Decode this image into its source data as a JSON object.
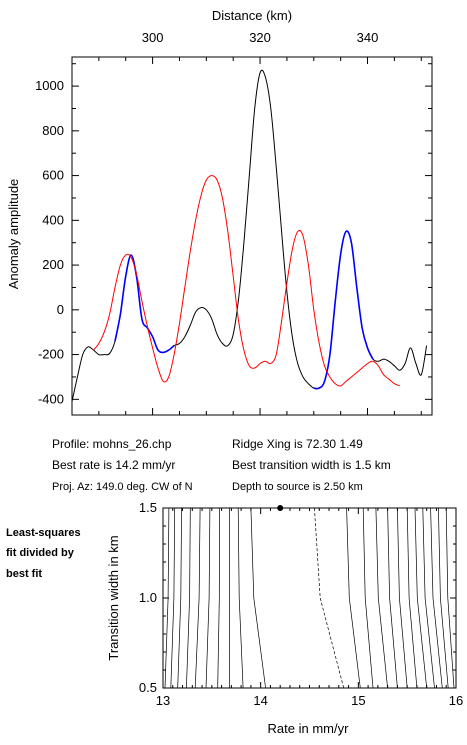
{
  "chart_data": [
    {
      "type": "line",
      "top_axis_label": "Distance (km)",
      "ylabel": "Anomaly amplitude",
      "x_ticks": [
        300,
        320,
        340
      ],
      "y_ticks": [
        -400,
        -200,
        0,
        200,
        400,
        600,
        800,
        1000
      ],
      "xlim": [
        285,
        352
      ],
      "ylim": [
        -470,
        1130
      ],
      "grid": false,
      "series": [
        {
          "color": "#000000",
          "role": "observed",
          "x": [
            285,
            286,
            287,
            288,
            289,
            290,
            291,
            292,
            293,
            294,
            295,
            296,
            297,
            298,
            299,
            300,
            301,
            302,
            303,
            304,
            305,
            306,
            307,
            308,
            309,
            310,
            311,
            312,
            313,
            314,
            315,
            316,
            317,
            318,
            319,
            320,
            321,
            322,
            323,
            324,
            325,
            326,
            327,
            328,
            329,
            330,
            331,
            332,
            333,
            334,
            335,
            336,
            337,
            338,
            339,
            340,
            341,
            342,
            343,
            344,
            345,
            346,
            347,
            348,
            349,
            350,
            351
          ],
          "y": [
            -410,
            -300,
            -200,
            -165,
            -180,
            -200,
            -200,
            -195,
            -140,
            -20,
            150,
            245,
            150,
            -40,
            -80,
            -120,
            -180,
            -190,
            -180,
            -160,
            -150,
            -120,
            -70,
            -10,
            10,
            0,
            -40,
            -110,
            -150,
            -160,
            -110,
            50,
            300,
            600,
            900,
            1060,
            1040,
            900,
            640,
            350,
            80,
            -120,
            -240,
            -300,
            -330,
            -350,
            -350,
            -320,
            -200,
            40,
            250,
            350,
            300,
            100,
            -80,
            -170,
            -220,
            -230,
            -220,
            -230,
            -250,
            -270,
            -240,
            -170,
            -240,
            -290,
            -160
          ]
        },
        {
          "color": "#0000ff",
          "role": "observed-fit",
          "x": [
            293,
            294,
            295,
            296,
            297,
            298,
            299,
            300,
            301,
            302,
            303,
            304
          ],
          "y": [
            -140,
            -20,
            150,
            245,
            150,
            -40,
            -80,
            -120,
            -180,
            -190,
            -180,
            -160
          ]
        },
        {
          "color": "#0000ff",
          "role": "observed-fit",
          "x": [
            330,
            331,
            332,
            333,
            334,
            335,
            336,
            337,
            338,
            339,
            340,
            341
          ],
          "y": [
            -350,
            -350,
            -320,
            -200,
            40,
            250,
            350,
            300,
            100,
            -80,
            -170,
            -220
          ]
        },
        {
          "color": "#ff0000",
          "role": "model",
          "x": [
            289,
            290,
            291,
            292,
            293,
            294,
            295,
            296,
            297,
            298,
            299,
            300,
            301,
            302,
            303,
            304,
            305,
            306,
            307,
            308,
            309,
            310,
            311,
            312,
            313,
            314,
            315,
            316,
            317,
            318,
            319,
            320,
            321,
            322,
            323,
            324,
            325,
            326,
            327,
            328,
            329,
            330,
            331,
            332,
            333,
            334,
            335,
            336,
            337,
            338,
            339,
            340,
            341,
            342,
            343,
            344,
            345,
            346
          ],
          "y": [
            -180,
            -150,
            -100,
            -20,
            100,
            200,
            245,
            235,
            160,
            40,
            -70,
            -170,
            -260,
            -320,
            -300,
            -200,
            -60,
            100,
            260,
            400,
            510,
            580,
            600,
            580,
            500,
            350,
            150,
            -50,
            -180,
            -250,
            -260,
            -240,
            -230,
            -240,
            -200,
            -50,
            120,
            270,
            350,
            330,
            200,
            0,
            -150,
            -250,
            -300,
            -330,
            -340,
            -320,
            -300,
            -280,
            -260,
            -240,
            -230,
            -250,
            -290,
            -310,
            -330,
            -340
          ]
        }
      ]
    },
    {
      "type": "contour",
      "xlabel": "Rate in mm/yr",
      "ylabel": "Transition width in km",
      "x_ticks": [
        13,
        14,
        15,
        16
      ],
      "y_ticks": [
        0.5,
        1.0,
        1.5
      ],
      "xlim": [
        13,
        16
      ],
      "ylim": [
        0.5,
        1.5
      ],
      "best_fit_point": {
        "rate": 14.2,
        "width": 1.5
      },
      "contour_lines": [
        {
          "x_bottom": 13.02,
          "x_top": 13.06,
          "dashed": false
        },
        {
          "x_bottom": 13.08,
          "x_top": 13.12,
          "dashed": false
        },
        {
          "x_bottom": 13.15,
          "x_top": 13.19,
          "dashed": false
        },
        {
          "x_bottom": 13.24,
          "x_top": 13.28,
          "dashed": false
        },
        {
          "x_bottom": 13.33,
          "x_top": 13.38,
          "dashed": false
        },
        {
          "x_bottom": 13.44,
          "x_top": 13.48,
          "dashed": false
        },
        {
          "x_bottom": 13.56,
          "x_top": 13.58,
          "dashed": false
        },
        {
          "x_bottom": 13.68,
          "x_top": 13.68,
          "dashed": false
        },
        {
          "x_bottom": 13.82,
          "x_top": 13.77,
          "dashed": false
        },
        {
          "x_bottom": 14.05,
          "x_top": 13.9,
          "dashed": false
        },
        {
          "x_bottom": 14.85,
          "x_top": 14.55,
          "dashed": true
        },
        {
          "x_bottom": 15.02,
          "x_top": 14.88,
          "dashed": false
        },
        {
          "x_bottom": 15.15,
          "x_top": 15.05,
          "dashed": false
        },
        {
          "x_bottom": 15.3,
          "x_top": 15.18,
          "dashed": false
        },
        {
          "x_bottom": 15.4,
          "x_top": 15.3,
          "dashed": false
        },
        {
          "x_bottom": 15.5,
          "x_top": 15.4,
          "dashed": false
        },
        {
          "x_bottom": 15.6,
          "x_top": 15.5,
          "dashed": false
        },
        {
          "x_bottom": 15.7,
          "x_top": 15.58,
          "dashed": false
        },
        {
          "x_bottom": 15.78,
          "x_top": 15.66,
          "dashed": false
        },
        {
          "x_bottom": 15.86,
          "x_top": 15.74,
          "dashed": false
        },
        {
          "x_bottom": 15.92,
          "x_top": 15.82,
          "dashed": false
        },
        {
          "x_bottom": 15.98,
          "x_top": 15.9,
          "dashed": false
        }
      ]
    }
  ],
  "info": {
    "profile": "Profile: mohns_26.chp",
    "best_rate": "Best rate is 14.2 mm/yr",
    "proj_az": "Proj. Az: 149.0 deg. CW of N",
    "ridge_xing": "Ridge Xing is 72.30 1.49",
    "best_transition": "Best transition width is 1.5 km",
    "depth_source": "Depth to source is   2.50 km"
  },
  "side_note": [
    "Least-squares",
    "fit divided by",
    "best fit"
  ]
}
